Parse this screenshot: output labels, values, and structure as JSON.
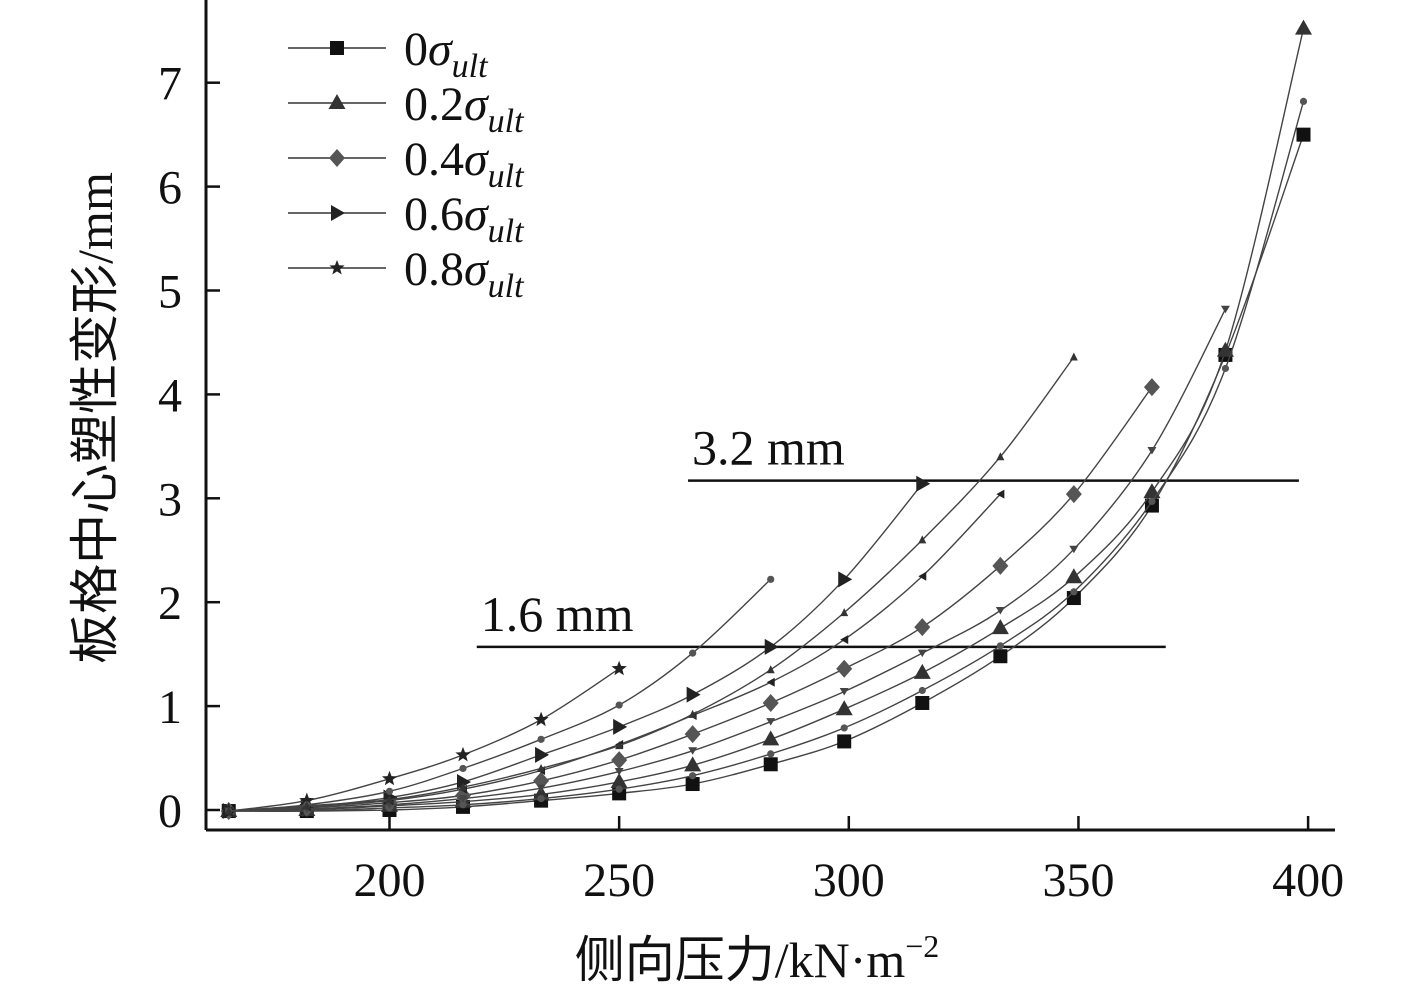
{
  "chart_data": {
    "type": "line",
    "title": "",
    "xlabel": "侧向压力/kN·m",
    "xlabel_superscript": "−2",
    "ylabel": "板格中心塑性变形/mm",
    "xlim": [
      160,
      405
    ],
    "ylim": [
      -0.2,
      7.7
    ],
    "xticks": [
      200,
      250,
      300,
      350,
      400
    ],
    "xtick_labels": [
      "200",
      "250",
      "300",
      "350",
      "400"
    ],
    "yticks": [
      0,
      1,
      2,
      3,
      4,
      5,
      6,
      7
    ],
    "ytick_labels": [
      "0",
      "1",
      "2",
      "3",
      "4",
      "5",
      "6",
      "7"
    ],
    "grid": false,
    "legend_position": "top-left",
    "legend_symbol": "σ",
    "legend_subscript": "ult",
    "series": [
      {
        "name": "0σult",
        "legend_prefix": "0",
        "marker": "square",
        "x": [
          165,
          182,
          200,
          216,
          233,
          250,
          266,
          283,
          299,
          316,
          333,
          349,
          366,
          382,
          399
        ],
        "y": [
          -0.01,
          -0.01,
          0.0,
          0.03,
          0.09,
          0.16,
          0.25,
          0.44,
          0.66,
          1.03,
          1.48,
          2.04,
          2.93,
          4.38,
          6.5
        ]
      },
      {
        "name": "0.2σult",
        "legend_prefix": "0.2",
        "marker": "triangle",
        "x": [
          165,
          182,
          200,
          216,
          233,
          250,
          266,
          283,
          299,
          316,
          333,
          349,
          366,
          382,
          399
        ],
        "y": [
          -0.01,
          0.0,
          0.04,
          0.08,
          0.15,
          0.27,
          0.43,
          0.68,
          0.97,
          1.32,
          1.75,
          2.24,
          3.06,
          4.42,
          7.52
        ]
      },
      {
        "name": "0.4σult",
        "legend_prefix": "0.4",
        "marker": "diamond",
        "x": [
          165,
          182,
          200,
          216,
          233,
          250,
          266,
          283,
          299,
          316,
          333,
          349,
          366
        ],
        "y": [
          -0.01,
          0.02,
          0.07,
          0.14,
          0.28,
          0.48,
          0.73,
          1.03,
          1.36,
          1.76,
          2.35,
          3.04,
          4.07
        ]
      },
      {
        "name": "0.6σult",
        "legend_prefix": "0.6",
        "marker": "triangle-right",
        "x": [
          165,
          182,
          200,
          216,
          233,
          250,
          266,
          283,
          299,
          316
        ],
        "y": [
          -0.01,
          0.03,
          0.12,
          0.27,
          0.53,
          0.8,
          1.11,
          1.57,
          2.22,
          3.14
        ]
      },
      {
        "name": "0.8σult",
        "legend_prefix": "0.8",
        "marker": "star",
        "x": [
          165,
          182,
          200,
          216,
          233,
          250
        ],
        "y": [
          -0.01,
          0.09,
          0.3,
          0.53,
          0.87,
          1.36
        ]
      },
      {
        "name": "",
        "marker": "dot",
        "x": [
          165,
          182,
          200,
          216,
          233,
          250,
          266,
          283,
          299,
          316,
          333,
          349,
          366,
          382,
          399
        ],
        "y": [
          -0.01,
          -0.01,
          0.02,
          0.05,
          0.11,
          0.2,
          0.33,
          0.54,
          0.79,
          1.15,
          1.58,
          2.1,
          2.97,
          4.25,
          6.82
        ]
      },
      {
        "name": "",
        "marker": "triangle-down",
        "x": [
          165,
          182,
          200,
          216,
          233,
          250,
          266,
          283,
          299,
          316,
          333,
          349,
          366,
          382
        ],
        "y": [
          -0.01,
          0.01,
          0.05,
          0.11,
          0.21,
          0.37,
          0.57,
          0.85,
          1.14,
          1.51,
          1.92,
          2.51,
          3.46,
          4.82
        ]
      },
      {
        "name": "",
        "marker": "triangle-left",
        "x": [
          165,
          182,
          200,
          216,
          233,
          250,
          266,
          283,
          299,
          316,
          333
        ],
        "y": [
          -0.01,
          0.03,
          0.09,
          0.2,
          0.38,
          0.63,
          0.91,
          1.23,
          1.64,
          2.25,
          3.04
        ]
      },
      {
        "name": "",
        "marker": "dot",
        "x": [
          165,
          182,
          200,
          216,
          233,
          250,
          266,
          283
        ],
        "y": [
          -0.01,
          0.05,
          0.18,
          0.4,
          0.68,
          1.01,
          1.51,
          2.22
        ]
      },
      {
        "name": "",
        "marker": "triangle-up-small",
        "x": [
          165,
          182,
          200,
          216,
          233,
          250,
          266,
          283,
          299,
          316,
          333,
          349
        ],
        "y": [
          -0.01,
          0.04,
          0.1,
          0.22,
          0.4,
          0.62,
          0.92,
          1.35,
          1.9,
          2.6,
          3.4,
          4.36
        ]
      }
    ],
    "reference_lines": [
      {
        "label": "3.2 mm",
        "y": 3.17,
        "x_start": 265,
        "x_end": 398
      },
      {
        "label": "1.6 mm",
        "y": 1.57,
        "x_start": 219,
        "x_end": 369
      }
    ]
  }
}
